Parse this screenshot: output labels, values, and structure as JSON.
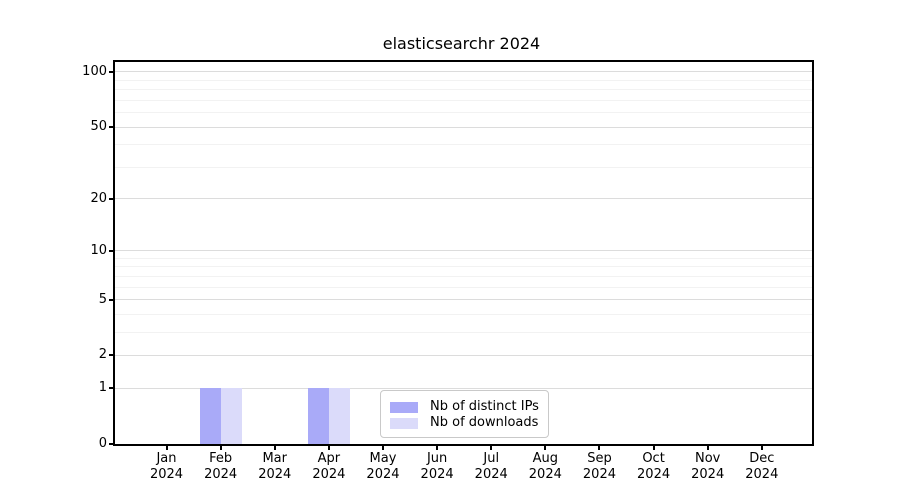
{
  "chart_data": {
    "type": "bar",
    "title": "elasticsearchr 2024",
    "categories": [
      "Jan 2024",
      "Feb 2024",
      "Mar 2024",
      "Apr 2024",
      "May 2024",
      "Jun 2024",
      "Jul 2024",
      "Aug 2024",
      "Sep 2024",
      "Oct 2024",
      "Nov 2024",
      "Dec 2024"
    ],
    "series": [
      {
        "name": "Nb of distinct IPs",
        "color": "#a9aaf8",
        "values": [
          0,
          1,
          0,
          1,
          0,
          0,
          0,
          0,
          0,
          0,
          0,
          0
        ]
      },
      {
        "name": "Nb of downloads",
        "color": "#dbdbfa",
        "values": [
          0,
          1,
          0,
          1,
          0,
          0,
          0,
          0,
          0,
          0,
          0,
          0
        ]
      }
    ],
    "yscale": "log1p",
    "ylim": [
      0,
      113.3
    ],
    "y_ticks": [
      0,
      1,
      2,
      5,
      10,
      20,
      50,
      100
    ],
    "y_minor_ticks": [
      3,
      4,
      6,
      7,
      8,
      9,
      30,
      40,
      60,
      70,
      80,
      90
    ],
    "xlabel": "",
    "ylabel": "",
    "grid": "horizontal",
    "legend_position": "lower center"
  },
  "colors": {
    "axis": "#000000",
    "major_grid": "#dcdcdc",
    "minor_grid": "#f2f2f2",
    "legend_border": "#c9c9c9",
    "background": "#ffffff"
  }
}
